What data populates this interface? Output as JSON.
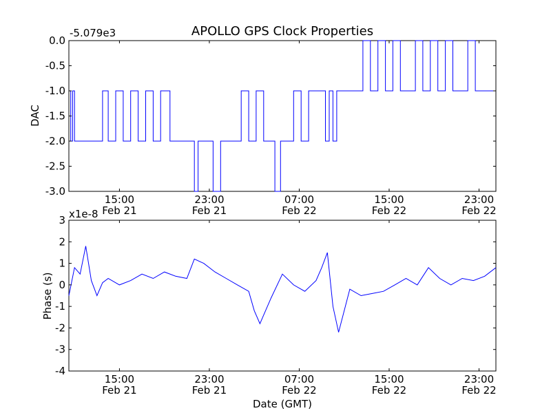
{
  "title": "APOLLO GPS Clock Properties",
  "colors": {
    "line": "#0000ff",
    "axes": "#000000",
    "background": "#ffffff"
  },
  "chart_data": [
    {
      "type": "line",
      "title": "APOLLO GPS Clock Properties",
      "xlabel": "",
      "ylabel": "DAC",
      "offset_text": "-5.079e3",
      "xlim": [
        "Feb 21 10:30",
        "Feb 23 00:30"
      ],
      "ylim": [
        -3.0,
        0.0
      ],
      "yticks": [
        "0.0",
        "-0.5",
        "-1.0",
        "-1.5",
        "-2.0",
        "-2.5",
        "-3.0"
      ],
      "xticks": [
        {
          "time": "15:00",
          "date": "Feb 21"
        },
        {
          "time": "23:00",
          "date": "Feb 21"
        },
        {
          "time": "07:00",
          "date": "Feb 22"
        },
        {
          "time": "15:00",
          "date": "Feb 22"
        },
        {
          "time": "23:00",
          "date": "Feb 22"
        }
      ],
      "grid": false,
      "series": [
        {
          "values_description": "step series of DAC values",
          "x": [
            "Feb 21 10:30",
            "Feb 21 10:40",
            "Feb 21 10:50",
            "Feb 21 11:00",
            "Feb 21 11:15",
            "Feb 21 11:40",
            "Feb 21 12:20",
            "Feb 21 13:10",
            "Feb 21 13:30",
            "Feb 21 14:00",
            "Feb 21 14:40",
            "Feb 21 15:20",
            "Feb 21 16:00",
            "Feb 21 16:40",
            "Feb 21 17:20",
            "Feb 21 18:00",
            "Feb 21 18:40",
            "Feb 21 19:30",
            "Feb 21 20:30",
            "Feb 21 21:10",
            "Feb 21 21:40",
            "Feb 21 22:00",
            "Feb 21 22:40",
            "Feb 21 23:20",
            "Feb 22 00:00",
            "Feb 22 00:40",
            "Feb 22 01:10",
            "Feb 22 01:50",
            "Feb 22 02:30",
            "Feb 22 03:10",
            "Feb 22 03:50",
            "Feb 22 04:20",
            "Feb 22 04:50",
            "Feb 22 05:20",
            "Feb 22 05:50",
            "Feb 22 06:30",
            "Feb 22 07:10",
            "Feb 22 07:50",
            "Feb 22 08:20",
            "Feb 22 08:50",
            "Feb 22 09:20",
            "Feb 22 09:40",
            "Feb 22 10:00",
            "Feb 22 10:20",
            "Feb 22 10:40",
            "Feb 22 11:20",
            "Feb 22 12:00",
            "Feb 22 12:40",
            "Feb 22 13:20",
            "Feb 22 14:00",
            "Feb 22 14:40",
            "Feb 22 15:20",
            "Feb 22 16:00",
            "Feb 22 16:40",
            "Feb 22 17:20",
            "Feb 22 18:00",
            "Feb 22 18:40",
            "Feb 22 19:20",
            "Feb 22 20:00",
            "Feb 22 20:40",
            "Feb 22 21:20",
            "Feb 22 22:00",
            "Feb 22 22:40",
            "Feb 22 23:20",
            "Feb 23 00:00",
            "Feb 23 00:30"
          ],
          "y": [
            -1.0,
            -2.0,
            -1.0,
            -2.0,
            -2.0,
            -2.0,
            -2.0,
            -2.0,
            -1.0,
            -2.0,
            -1.0,
            -2.0,
            -1.0,
            -2.0,
            -1.0,
            -2.0,
            -1.0,
            -2.0,
            -2.0,
            -2.0,
            -3.0,
            -2.0,
            -2.0,
            -3.0,
            -2.0,
            -2.0,
            -2.0,
            -1.0,
            -2.0,
            -1.0,
            -2.0,
            -2.0,
            -3.0,
            -2.0,
            -2.0,
            -1.0,
            -2.0,
            -1.0,
            -1.0,
            -1.0,
            -2.0,
            -1.0,
            -2.0,
            -1.0,
            -1.0,
            -1.0,
            -1.0,
            0.0,
            -1.0,
            0.0,
            -1.0,
            0.0,
            -1.0,
            -1.0,
            0.0,
            -1.0,
            0.0,
            -1.0,
            0.0,
            -1.0,
            -1.0,
            0.0,
            -1.0,
            -1.0,
            -1.0,
            -1.0
          ]
        }
      ]
    },
    {
      "type": "line",
      "title": "",
      "xlabel": "Date (GMT)",
      "ylabel": "Phase (s)",
      "offset_text": "x1e-8",
      "xlim": [
        "Feb 21 10:30",
        "Feb 23 00:30"
      ],
      "ylim": [
        -4,
        3
      ],
      "yticks": [
        "3",
        "2",
        "1",
        "0",
        "-1",
        "-2",
        "-3",
        "-4"
      ],
      "xticks": [
        {
          "time": "15:00",
          "date": "Feb 21"
        },
        {
          "time": "23:00",
          "date": "Feb 21"
        },
        {
          "time": "07:00",
          "date": "Feb 22"
        },
        {
          "time": "15:00",
          "date": "Feb 22"
        },
        {
          "time": "23:00",
          "date": "Feb 22"
        }
      ],
      "grid": false,
      "series": [
        {
          "values_description": "noisy phase series",
          "x": [
            "Feb 21 10:30",
            "Feb 21 11:00",
            "Feb 21 11:30",
            "Feb 21 12:00",
            "Feb 21 12:30",
            "Feb 21 13:00",
            "Feb 21 13:30",
            "Feb 21 14:00",
            "Feb 21 15:00",
            "Feb 21 16:00",
            "Feb 21 17:00",
            "Feb 21 18:00",
            "Feb 21 19:00",
            "Feb 21 20:00",
            "Feb 21 21:00",
            "Feb 21 21:40",
            "Feb 21 22:30",
            "Feb 21 23:30",
            "Feb 22 00:30",
            "Feb 22 01:30",
            "Feb 22 02:30",
            "Feb 22 03:00",
            "Feb 22 03:30",
            "Feb 22 04:30",
            "Feb 22 05:30",
            "Feb 22 06:30",
            "Feb 22 07:30",
            "Feb 22 08:30",
            "Feb 22 09:00",
            "Feb 22 09:30",
            "Feb 22 10:00",
            "Feb 22 10:30",
            "Feb 22 11:30",
            "Feb 22 12:30",
            "Feb 22 13:30",
            "Feb 22 14:30",
            "Feb 22 15:30",
            "Feb 22 16:30",
            "Feb 22 17:30",
            "Feb 22 18:30",
            "Feb 22 19:30",
            "Feb 22 20:30",
            "Feb 22 21:30",
            "Feb 22 22:30",
            "Feb 22 23:30",
            "Feb 23 00:30"
          ],
          "y": [
            -0.5,
            0.8,
            0.5,
            1.8,
            0.2,
            -0.5,
            0.1,
            0.3,
            0.0,
            0.2,
            0.5,
            0.3,
            0.6,
            0.4,
            0.3,
            1.2,
            1.0,
            0.6,
            0.3,
            0.0,
            -0.3,
            -1.2,
            -1.8,
            -0.6,
            0.5,
            0.0,
            -0.3,
            0.2,
            0.8,
            1.5,
            -1.0,
            -2.2,
            -0.2,
            -0.5,
            -0.4,
            -0.3,
            0.0,
            0.3,
            0.0,
            0.8,
            0.3,
            0.0,
            0.3,
            0.2,
            0.4,
            0.8
          ]
        }
      ]
    }
  ]
}
